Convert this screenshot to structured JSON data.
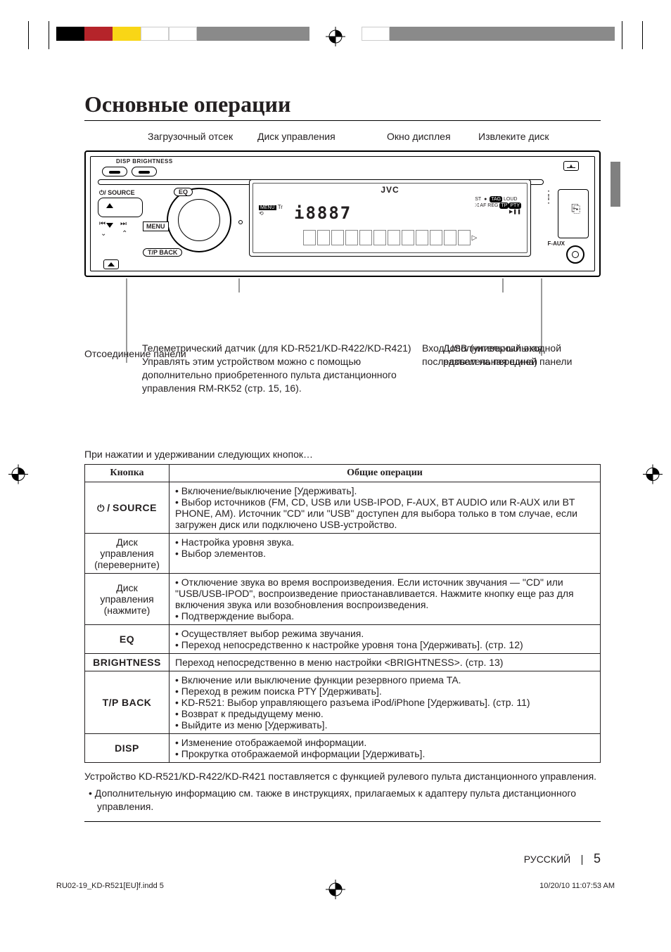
{
  "page": {
    "title": "Основные операции",
    "lang_label": "РУССКИЙ",
    "page_num": "5",
    "print_file": "RU02-19_KD-R521[EU]f.indd   5",
    "print_ts": "10/20/10   11:07:53 AM"
  },
  "top_labels": {
    "slot": "Загрузочный отсек",
    "dial": "Диск управления",
    "display": "Окно дисплея",
    "eject": "Извлеките диск"
  },
  "device": {
    "brand": "JVC",
    "disp_bright": "DISP   BRIGHTNESS",
    "source": "/ SOURCE",
    "eq": "EQ",
    "menu": "MENU",
    "tpback": "T/P BACK",
    "faux": "F-AUX",
    "eject_sym": "▲",
    "seg_main": "i8887",
    "ind_menu": "MENU",
    "ind_tr": "Tr",
    "ind_loop": "⟲",
    "ind_st": "ST",
    "ind_rec": "●",
    "ind_tag": "TAG",
    "ind_loud": "LOUD",
    "ind_af": "AF REG",
    "ind_tp": "TP",
    "ind_pty": "PTY",
    "ind_shuffle": "⤮",
    "ind_play": "▶❚❚"
  },
  "callouts": {
    "sensor": "Телеметрический датчик (для KD-R521/KD-R422/KD-R421) Управлять этим устройством можно с помощью дополнительно приобретенного пульта дистанционного управления RM-RK52 (стр. 15, 16).",
    "aux": "Дополнительный входной разъем на передней панели",
    "usb": "Вход USB (универсальная последовательная шина)",
    "detach": "Отсоединение панели"
  },
  "pre_table": "При нажатии и удерживании следующих кнопок…",
  "table": {
    "head_button": "Кнопка",
    "head_ops": "Общие операции",
    "rows": [
      {
        "key_html": "<span class='power-sym'>⏻</span> / <span class='condensed'>SOURCE</span>",
        "ops": [
          "Включение/выключение [Удерживать].",
          "Выбор источников (FM, CD, USB или USB-IPOD, F-AUX, BT AUDIO или R-AUX или BT PHONE, AM). Источник \"CD\" или \"USB\" доступен для выбора только в том случае, если загружен диск или подключено USB-устройство."
        ]
      },
      {
        "key_plain": "Диск управления (переверните)",
        "key_normal": true,
        "ops": [
          "Настройка уровня звука.",
          "Выбор элементов."
        ]
      },
      {
        "key_plain": "Диск управления (нажмите)",
        "key_normal": true,
        "ops": [
          "Отключение звука во время воспроизведения. Если источник звучания — \"CD\" или \"USB/USB-IPOD\", воспроизведение приостанавливается. Нажмите кнопку еще раз для включения звука или возобновления воспроизведения.",
          "Подтверждение выбора."
        ]
      },
      {
        "key_html": "<span class='condensed'>EQ</span>",
        "ops": [
          "Осуществляет выбор режима звучания.",
          "Переход непосредственно к настройке уровня тона [Удерживать]. (стр. 12)"
        ]
      },
      {
        "key_html": "<span class='condensed'>BRIGHTNESS</span>",
        "ops_single": "Переход непосредственно в меню настройки <BRIGHTNESS>. (стр. 13)"
      },
      {
        "key_html": "<span class='condensed'>T/P BACK</span>",
        "ops": [
          "Включение или выключение функции резервного приема TA.",
          "Переход в режим поиска PTY [Удерживать].",
          "KD-R521: Выбор управляющего разъема iPod/iPhone [Удерживать]. (стр. 11)",
          "Возврат к предыдущему меню.",
          "Выйдите из меню [Удерживать]."
        ]
      },
      {
        "key_html": "<span class='condensed'>DISP</span>",
        "ops": [
          "Изменение отображаемой информации.",
          "Прокрутка отображаемой информации [Удерживать]."
        ]
      }
    ]
  },
  "post": {
    "line1": "Устройство KD-R521/KD-R422/KD-R421 поставляется с функцией рулевого пульта дистанционного управления.",
    "bullet": "Дополнительную информацию см. также в инструкциях, прилагаемых к адаптеру пульта дистанционного управления."
  },
  "colors": {
    "swatches_left": [
      "#000000",
      "#b5242a",
      "#f9d616",
      "#ffffff",
      "#ffffff",
      "#8a8a8a",
      "#8a8a8a",
      "#8a8a8a",
      "#8a8a8a"
    ],
    "swatches_right": [
      "#ffffff",
      "#8a8a8a",
      "#8a8a8a",
      "#8a8a8a",
      "#8a8a8a",
      "#8a8a8a",
      "#8a8a8a",
      "#8a8a8a",
      "#8a8a8a"
    ]
  }
}
